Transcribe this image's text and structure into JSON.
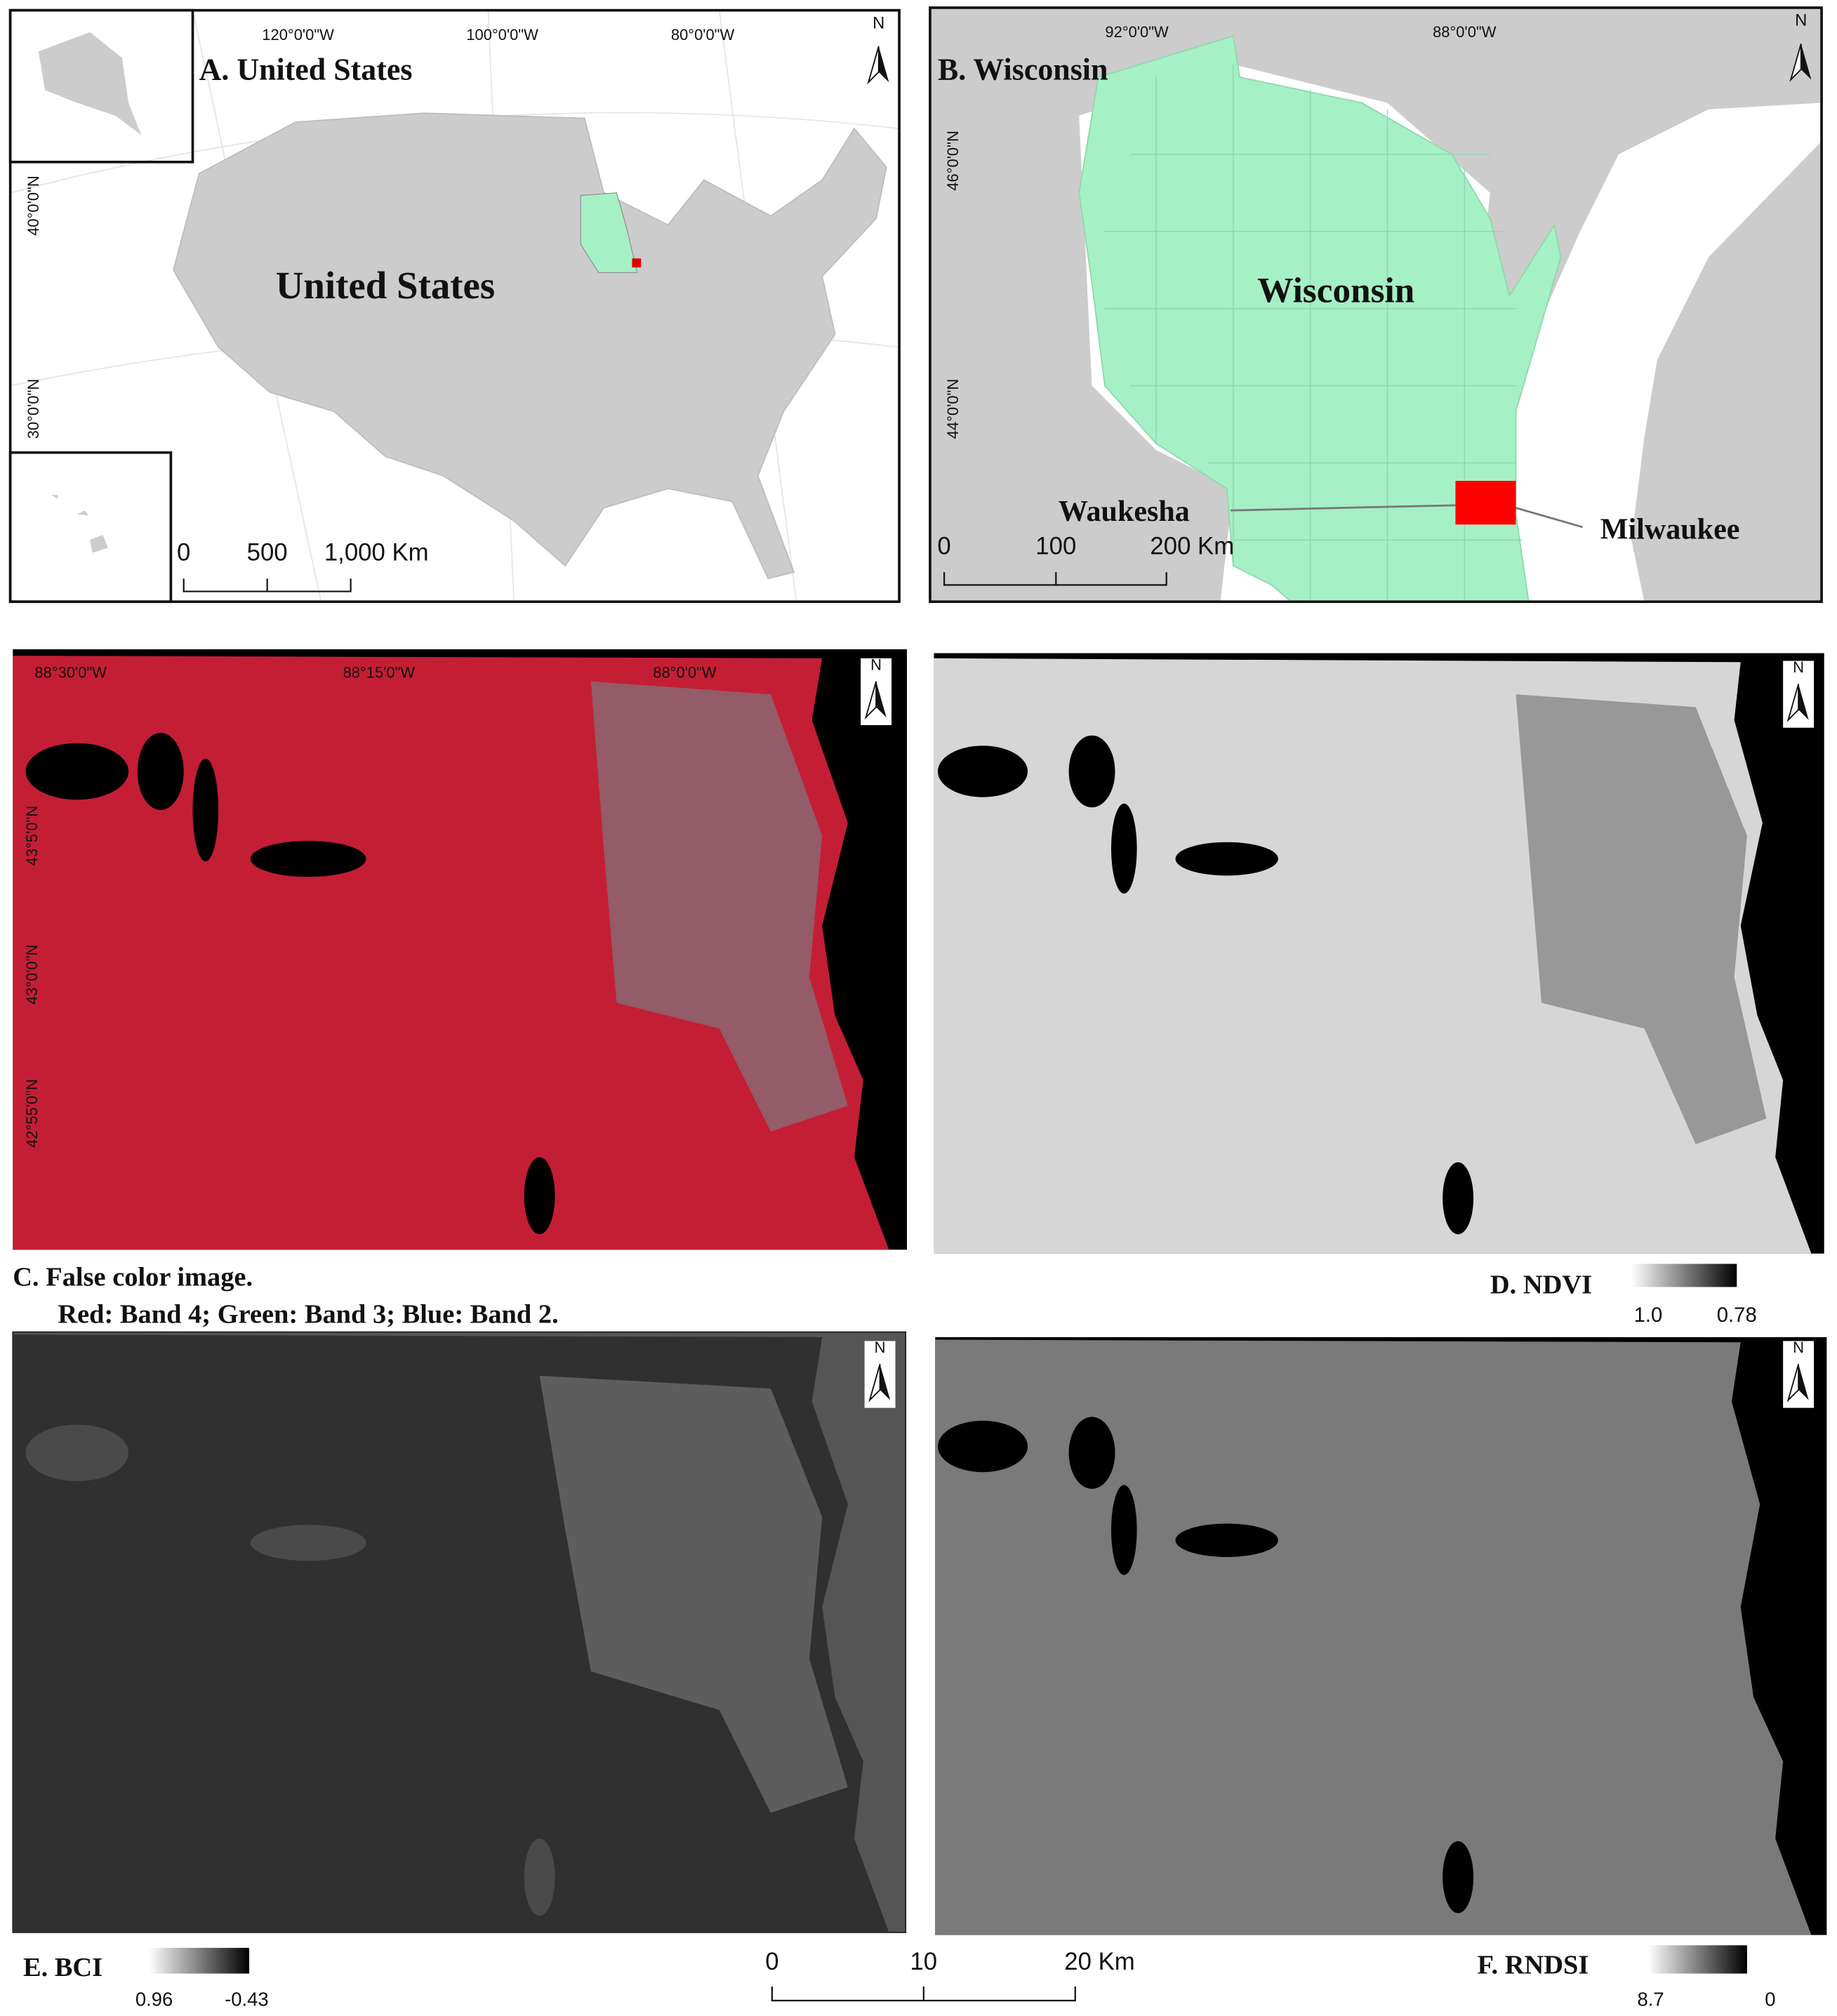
{
  "panels": {
    "a": {
      "title": "A. United States",
      "label": "United States",
      "lon_labels": [
        "120°0'0\"W",
        "100°0'0\"W",
        "80°0'0\"W"
      ],
      "lat_labels": [
        "40°0'0\"N",
        "30°0'0\"N"
      ],
      "scale": [
        "0",
        "500",
        "1,000 Km"
      ],
      "north": "N"
    },
    "b": {
      "title": "B. Wisconsin",
      "label": "Wisconsin",
      "lon_labels": [
        "92°0'0\"W",
        "88°0'0\"W"
      ],
      "lat_labels": [
        "46°0'0\"N",
        "44°0'0\"N"
      ],
      "scale": [
        "0",
        "100",
        "200 Km"
      ],
      "places": [
        "Waukesha",
        "Milwaukee"
      ],
      "north": "N"
    },
    "c": {
      "title": "C. False color image.",
      "subtitle": "Red: Band 4; Green: Band 3; Blue: Band 2.",
      "lon_labels": [
        "88°30'0\"W",
        "88°15'0\"W",
        "88°0'0\"W"
      ],
      "lat_labels": [
        "43°5'0\"N",
        "43°0'0\"N",
        "42°55'0\"N"
      ],
      "north": "N"
    },
    "d": {
      "title": "D. NDVI",
      "legend": [
        "1.0",
        "0.78"
      ],
      "north": "N"
    },
    "e": {
      "title": "E. BCI",
      "legend": [
        "0.96",
        "-0.43"
      ],
      "north": "N"
    },
    "f": {
      "title": "F. RNDSI",
      "legend": [
        "8.7",
        "0"
      ],
      "north": "N"
    }
  },
  "scale": [
    "0",
    "10",
    "20 Km"
  ]
}
